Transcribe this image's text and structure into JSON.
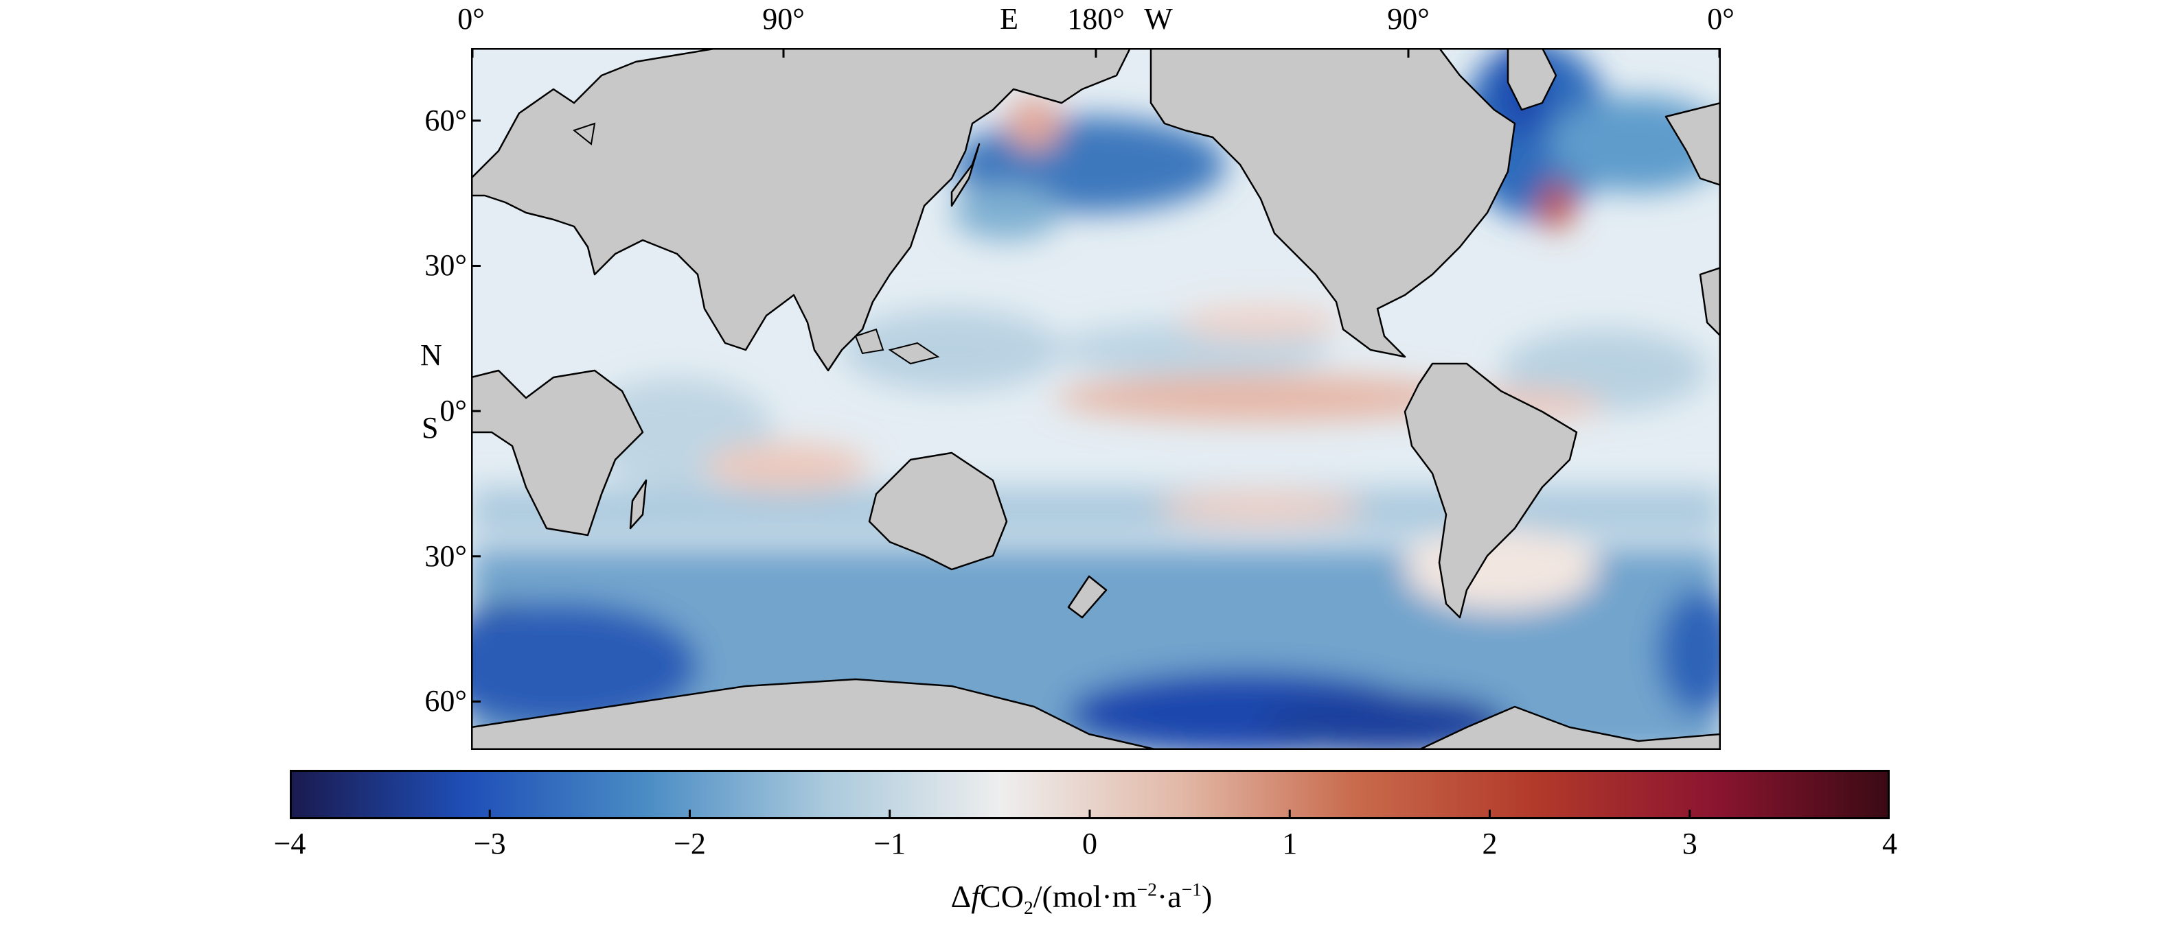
{
  "map": {
    "top_ticks": [
      {
        "label": "0°",
        "lon": 0
      },
      {
        "label": "90°",
        "lon": 90
      },
      {
        "label": "E",
        "lon": 155
      },
      {
        "label": "180°",
        "lon": 180
      },
      {
        "label": "W",
        "lon": 198
      },
      {
        "label": "90°",
        "lon": 270
      },
      {
        "label": "0°",
        "lon": 360
      }
    ],
    "left_ticks": [
      {
        "label": "60°",
        "lat": 60
      },
      {
        "label": "30°",
        "lat": 30
      },
      {
        "label": "0°",
        "lat": 0
      },
      {
        "label": "30°",
        "lat": -30
      },
      {
        "label": "60°",
        "lat": -60
      }
    ],
    "hemisphere_labels": {
      "north": "N",
      "south": "S"
    },
    "lon_range": [
      0,
      360
    ],
    "lat_range": [
      -70,
      75
    ],
    "colors": {
      "land": "#c8c8c8",
      "coast": "#000000",
      "ocean_base": "#e6eef4"
    }
  },
  "colorbar": {
    "min": -4,
    "max": 4,
    "ticks": [
      "−4",
      "−3",
      "−2",
      "−1",
      "0",
      "1",
      "2",
      "3",
      "4"
    ],
    "tick_values": [
      -4,
      -3,
      -2,
      -1,
      0,
      1,
      2,
      3,
      4
    ],
    "label_prefix": "Δ",
    "label_f": "f",
    "label_co": "CO",
    "label_sub": "2",
    "label_unit1": "/(mol·m",
    "label_sup1": "−2",
    "label_unit2": "·a",
    "label_sup2": "−1",
    "label_close": ")",
    "stops": [
      "#1a1a4e",
      "#1f4fb8",
      "#4a8cc4",
      "#a9c9dc",
      "#eeeeee",
      "#e2b9a8",
      "#c86a4c",
      "#b23a2a",
      "#8c1530",
      "#3a0a14"
    ]
  }
}
